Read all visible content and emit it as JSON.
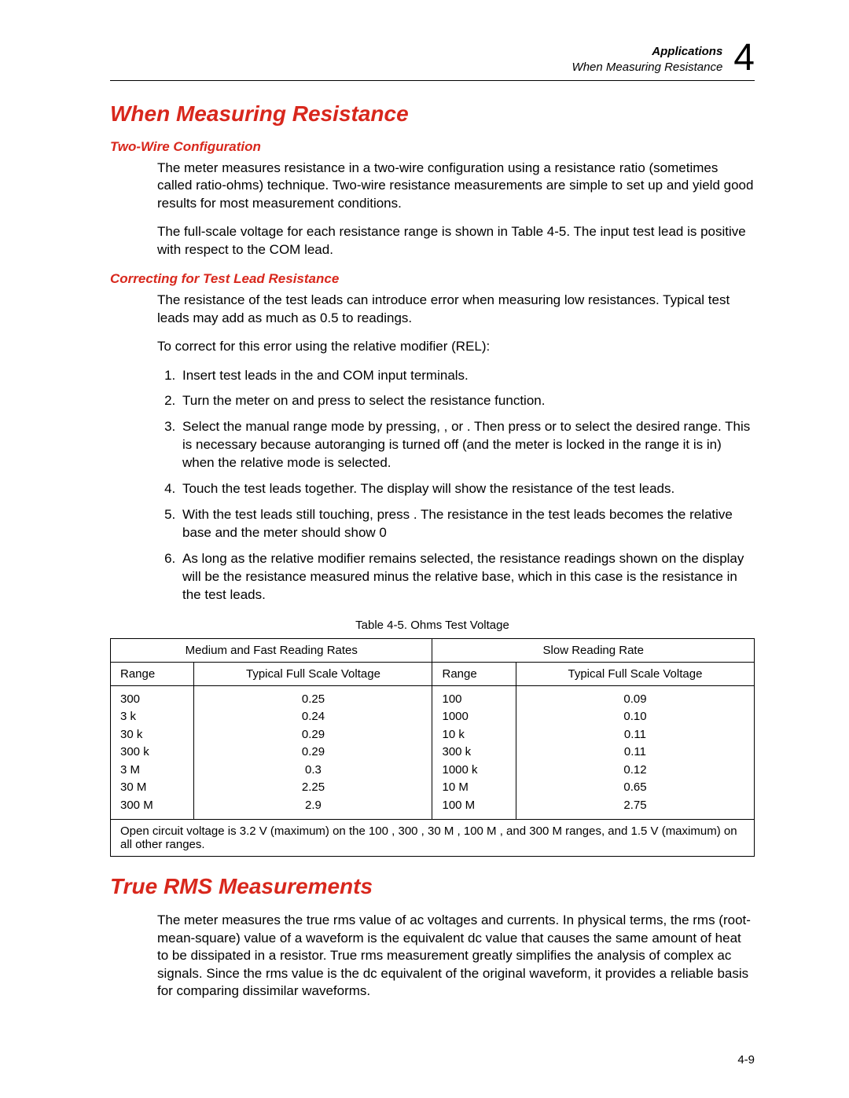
{
  "header": {
    "line1": "Applications",
    "line2": "When Measuring Resistance",
    "chapter": "4"
  },
  "section1": {
    "title": "When Measuring Resistance",
    "sub1": {
      "title": "Two-Wire Configuration",
      "p1": "The meter measures resistance in a two-wire configuration using a resistance ratio (sometimes called ratio-ohms) technique. Two-wire resistance measurements are simple to set up and yield good results for most measurement conditions.",
      "p2": "The full-scale voltage for each resistance range is shown in Table 4-5. The    input test lead is positive with respect to the COM lead."
    },
    "sub2": {
      "title": "Correcting for Test Lead Resistance",
      "p1": "The resistance of the test leads can introduce error when measuring low resistances. Typical test leads may add as much as 0.5 to readings.",
      "p2": "To correct for this error using the relative modifier (REL):",
      "steps": [
        "Insert test leads in the        and COM input terminals.",
        "Turn the meter on and press   to select the resistance function.",
        "Select the manual range mode by pressing,     , or      . Then press      or        to select the desired range. This is necessary because autoranging is turned off (and the meter is locked in the range it is in) when the relative mode is selected.",
        "Touch the test leads together. The display will show the resistance of the test leads.",
        "With the test leads still touching, press  . The resistance in the test leads becomes the relative base and the meter should show 0",
        "As long as the relative modifier remains selected, the resistance readings shown on the display will be the resistance measured minus the relative base, which in this case is the resistance in the test leads."
      ]
    }
  },
  "table": {
    "caption": "Table 4-5. Ohms Test Voltage",
    "h_top_left": "Medium and Fast Reading Rates",
    "h_top_right": "Slow Reading Rate",
    "h_range": "Range",
    "h_voltage": "Typical Full Scale Voltage",
    "left": {
      "ranges": [
        "300",
        "3 k",
        "30 k",
        "300 k",
        "3 M",
        "30 M",
        "300 M"
      ],
      "volts": [
        "0.25",
        "0.24",
        "0.29",
        "0.29",
        "0.3",
        "2.25",
        "2.9"
      ]
    },
    "right": {
      "ranges": [
        "100",
        "1000",
        "10 k",
        "300 k",
        "1000 k",
        "10 M",
        "100 M"
      ],
      "volts": [
        "0.09",
        "0.10",
        "0.11",
        "0.11",
        "0.12",
        "0.65",
        "2.75"
      ]
    },
    "footnote": "Open circuit voltage is 3.2 V (maximum) on the 100    , 300    , 30 M   , 100 M   , and 300 M    ranges, and 1.5 V (maximum) on all other ranges."
  },
  "section2": {
    "title": "True RMS Measurements",
    "p1": "The meter measures the true rms value of ac voltages and currents. In physical terms, the rms (root-mean-square) value of a waveform is the equivalent dc value that causes the same amount of heat to be dissipated in a resistor. True rms measurement greatly simplifies the analysis of complex ac signals. Since the rms value is the dc equivalent of the original waveform, it provides a reliable basis for comparing dissimilar waveforms."
  },
  "page_number": "4-9"
}
